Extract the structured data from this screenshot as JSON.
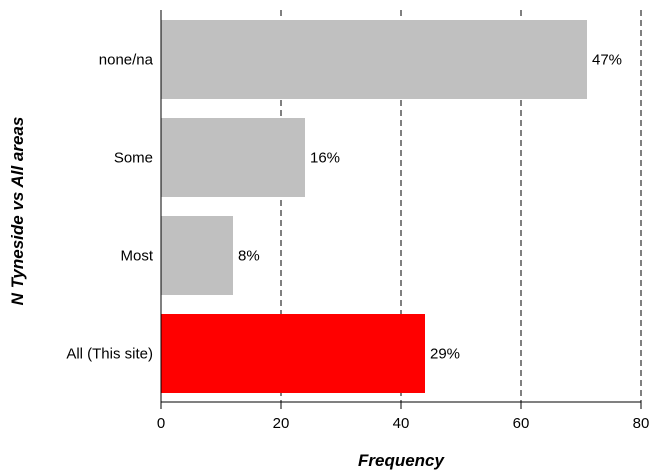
{
  "chart_data": {
    "type": "bar",
    "orientation": "horizontal",
    "categories": [
      "none/na",
      "Some",
      "Most",
      "All (This site)"
    ],
    "values": [
      71,
      24,
      12,
      44
    ],
    "data_labels": [
      "47%",
      "16%",
      "8%",
      "29%"
    ],
    "bar_colors": [
      "#c0c0c0",
      "#c0c0c0",
      "#c0c0c0",
      "#ff0000"
    ],
    "xlabel": "Frequency",
    "ylabel": "N Tyneside vs All areas",
    "xlim": [
      0,
      80
    ],
    "xticks": [
      0,
      20,
      40,
      60,
      80
    ],
    "grid": "vertical dashed"
  }
}
